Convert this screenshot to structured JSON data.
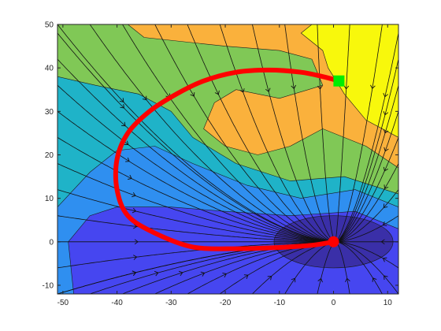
{
  "chart_data": {
    "type": "contour",
    "title": "",
    "xlabel": "",
    "ylabel": "",
    "xlim": [
      -51,
      12
    ],
    "ylim": [
      -12,
      50
    ],
    "xticks": [
      -50,
      -40,
      -30,
      -20,
      -10,
      0,
      10
    ],
    "yticks": [
      -10,
      0,
      10,
      20,
      30,
      40,
      50
    ],
    "grid": false,
    "legend": "none",
    "contour_colors": [
      "#3a2fa8",
      "#4646f0",
      "#2f8ff0",
      "#1fb3c8",
      "#80c856",
      "#fab13c",
      "#f8f80c"
    ],
    "field_well_center": [
      0,
      0
    ],
    "path_color": "#ff0000",
    "path": {
      "x": [
        0,
        -4,
        -10,
        -18,
        -26,
        -33,
        -38,
        -40,
        -40,
        -38,
        -34,
        -29,
        -24,
        -18,
        -12,
        -6,
        -2,
        1
      ],
      "y": [
        0,
        -0.8,
        -1.3,
        -1.6,
        -1.2,
        2,
        6,
        12,
        19,
        25,
        30,
        34,
        37,
        39,
        39.5,
        39,
        38,
        37
      ]
    },
    "start_marker": {
      "x": 0,
      "y": 0,
      "shape": "circle",
      "color": "#ff0000"
    },
    "goal_marker": {
      "x": 1,
      "y": 37,
      "shape": "square",
      "color": "#00ee00"
    }
  }
}
